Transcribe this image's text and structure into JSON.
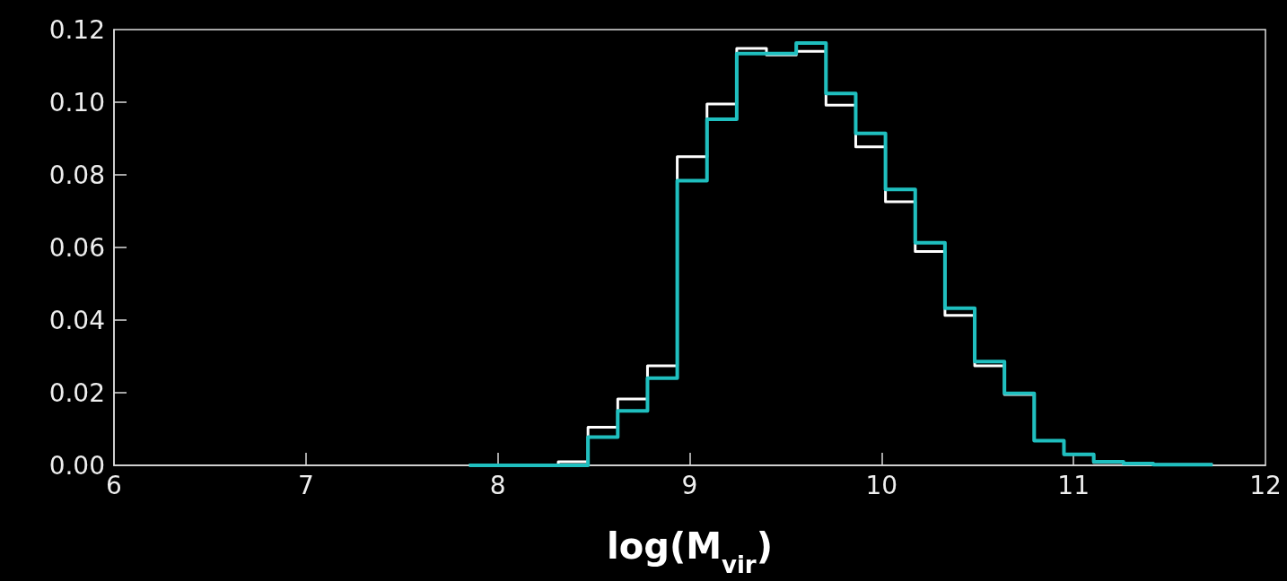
{
  "chart_data": {
    "type": "histogram",
    "xlabel": "log(M$_{vir}$)",
    "bins": [
      7.85,
      8.005,
      8.16,
      8.315,
      8.47,
      8.625,
      8.78,
      8.935,
      9.09,
      9.245,
      9.4,
      9.555,
      9.71,
      9.865,
      10.02,
      10.175,
      10.33,
      10.485,
      10.64,
      10.795,
      10.95,
      11.105,
      11.26,
      11.415,
      11.57,
      11.725
    ],
    "series": [
      {
        "color": "#ffffff",
        "values": [
          0,
          0,
          0,
          0.001,
          0.0105,
          0.0183,
          0.0274,
          0.085,
          0.0995,
          0.1148,
          0.113,
          0.114,
          0.0992,
          0.0877,
          0.0726,
          0.0589,
          0.0413,
          0.0274,
          0.0195,
          0.0068,
          0.003,
          0.0008,
          0.0005,
          0.0002,
          0.0002
        ]
      },
      {
        "color": "#1fbfbf",
        "values": [
          0,
          0,
          0,
          0,
          0.0078,
          0.015,
          0.024,
          0.0784,
          0.0953,
          0.1134,
          0.1134,
          0.1163,
          0.1024,
          0.0914,
          0.076,
          0.0613,
          0.0433,
          0.0286,
          0.0198,
          0.0068,
          0.003,
          0.001,
          0.0005,
          0.0002,
          0.0002
        ]
      }
    ],
    "xlim": [
      6,
      12
    ],
    "xticks": [
      6,
      7,
      8,
      9,
      10,
      11,
      12
    ],
    "ylim": [
      0,
      0.12
    ],
    "yticks": [
      {
        "value": 0,
        "label": "0.00"
      },
      {
        "value": 0.02,
        "label": "0.02"
      },
      {
        "value": 0.04,
        "label": "0.04"
      },
      {
        "value": 0.06,
        "label": "0.06"
      },
      {
        "value": 0.08,
        "label": "0.08"
      },
      {
        "value": 0.1,
        "label": "0.10"
      },
      {
        "value": 0.12,
        "label": "0.12"
      }
    ]
  }
}
